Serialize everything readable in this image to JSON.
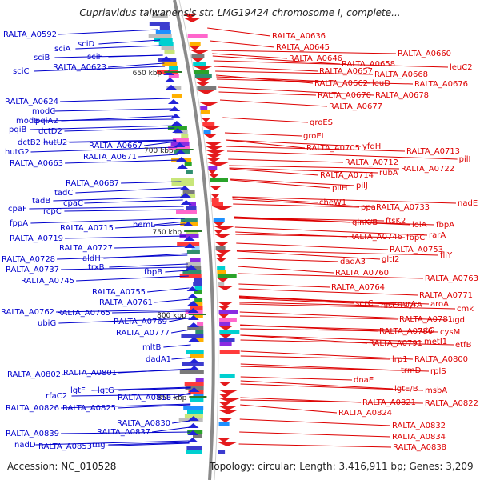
{
  "title": "Cupriavidus taiwanensis str. LMG19424 chromosome I, complete...",
  "accession": "Accession: NC_010528",
  "summary": "Topology: circular; Length: 3,416,911 bp; Genes: 3,209",
  "colors": {
    "left_label": "#0000cc",
    "right_label": "#dd0000",
    "backbone": "#888888",
    "tick_label": "#222222",
    "scale_tick": "#2a7a2a"
  },
  "scale_labels": [
    "650 kbp",
    "700 kbp",
    "750 kbp",
    "800 kbp",
    "850 kbp"
  ],
  "left_labels": [
    "RALTA_A0592",
    "sciD",
    "sciA",
    "sciB",
    "sciF",
    "sciC",
    "RALTA_A0623",
    "RALTA_A0624",
    "modC",
    "modB",
    "pqiA2",
    "pqiB",
    "dctD2",
    "dctB2",
    "hutU2",
    "hutG2",
    "RALTA_A0667",
    "RALTA_A0663",
    "RALTA_A0671",
    "RALTA_A0687",
    "tadC",
    "tadB",
    "cpaC",
    "cpaF",
    "rcpC",
    "fppA",
    "RALTA_A0715",
    "hemL",
    "RALTA_A0719",
    "RALTA_A0727",
    "aldH",
    "RALTA_A0728",
    "trxB",
    "RALTA_A0737",
    "fbpB",
    "RALTA_A0745",
    "RALTA_A0755",
    "RALTA_A0761",
    "RALTA_A0762",
    "RALTA_A0765",
    "ubiG",
    "RALTA_A0769",
    "RALTA_A0777",
    "mltB",
    "dadA1",
    "RALTA_A0802",
    "RALTA_A0801",
    "lgtF",
    "lgtG",
    "rfaC2",
    "RALTA_A0818",
    "RALTA_A0826",
    "RALTA_A0825",
    "RALTA_A0830",
    "RALTA_A0839",
    "RALTA_A0837",
    "nadD",
    "RALTA_A0853",
    "rng"
  ],
  "right_labels": [
    "RALTA_A0636",
    "RALTA_A0645",
    "RALTA_A0646",
    "RALTA_A0660",
    "RALTA_A0658",
    "leuC2",
    "RALTA_A0657",
    "RALTA_A0668",
    "RALTA_A0662",
    "leuD",
    "RALTA_A0676",
    "RALTA_A0670",
    "RALTA_A0678",
    "RALTA_A0677",
    "groES",
    "groEL",
    "RALTA_A0705",
    "yfdH",
    "RALTA_A0713",
    "RALTA_A0712",
    "pilI",
    "RALTA_A0714",
    "rubA",
    "RALTA_A0722",
    "pilH",
    "pilJ",
    "cheW1",
    "ppa",
    "RALTA_A0733",
    "nadE",
    "glnK/B",
    "ftsK2",
    "lolA",
    "fbpA",
    "RALTA_A0746",
    "fbpC",
    "rarA",
    "RALTA_A0753",
    "fliY",
    "dadA3",
    "gltI2",
    "RALTA_A0760",
    "RALTA_A0763",
    "RALTA_A0764",
    "gyrA",
    "RALTA_A0771",
    "serC",
    "hisC",
    "tyrA",
    "aroA",
    "cmk",
    "RALTA_A0781",
    "ugd",
    "RALTA_A0786",
    "rutG",
    "cysM",
    "RALTA_A0791",
    "metI1",
    "etfB",
    "lrp1",
    "RALTA_A0800",
    "trmD",
    "rplS",
    "dnaE",
    "lgtE/B",
    "msbA",
    "RALTA_A0821",
    "RALTA_A0822",
    "RALTA_A0824",
    "RALTA_A0832",
    "RALTA_A0834",
    "RALTA_A0838"
  ]
}
